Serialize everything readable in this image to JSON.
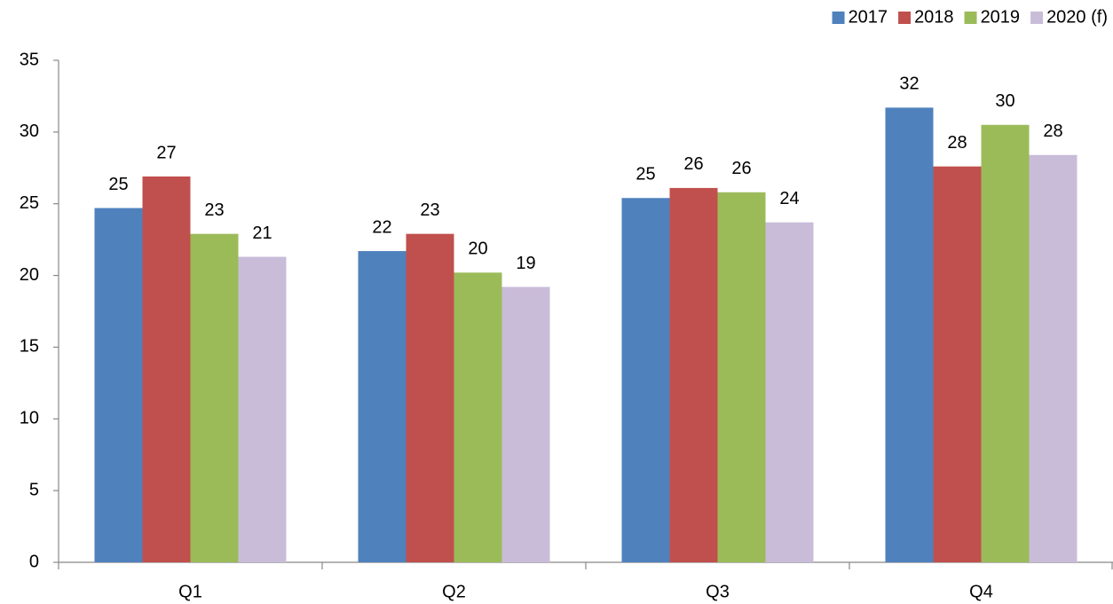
{
  "chart_data": {
    "type": "bar",
    "categories": [
      "Q1",
      "Q2",
      "Q3",
      "Q4"
    ],
    "series": [
      {
        "name": "2017",
        "color": "#4f81bd",
        "values": [
          24.7,
          21.7,
          25.4,
          31.7
        ],
        "value_labels": [
          "25",
          "22",
          "25",
          "32"
        ]
      },
      {
        "name": "2018",
        "color": "#c0504d",
        "values": [
          26.9,
          22.9,
          26.1,
          27.6
        ],
        "value_labels": [
          "27",
          "23",
          "26",
          "28"
        ]
      },
      {
        "name": "2019",
        "color": "#9bbb59",
        "values": [
          22.9,
          20.2,
          25.8,
          30.5
        ],
        "value_labels": [
          "23",
          "20",
          "26",
          "30"
        ]
      },
      {
        "name": "2020 (f)",
        "color": "#c9bcd9",
        "values": [
          21.3,
          19.2,
          23.7,
          28.4
        ],
        "value_labels": [
          "21",
          "19",
          "24",
          "28"
        ]
      }
    ],
    "ylim": [
      0,
      35
    ],
    "yticks": [
      0,
      5,
      10,
      15,
      20,
      25,
      30,
      35
    ],
    "grid": false,
    "legend": "top-right"
  }
}
